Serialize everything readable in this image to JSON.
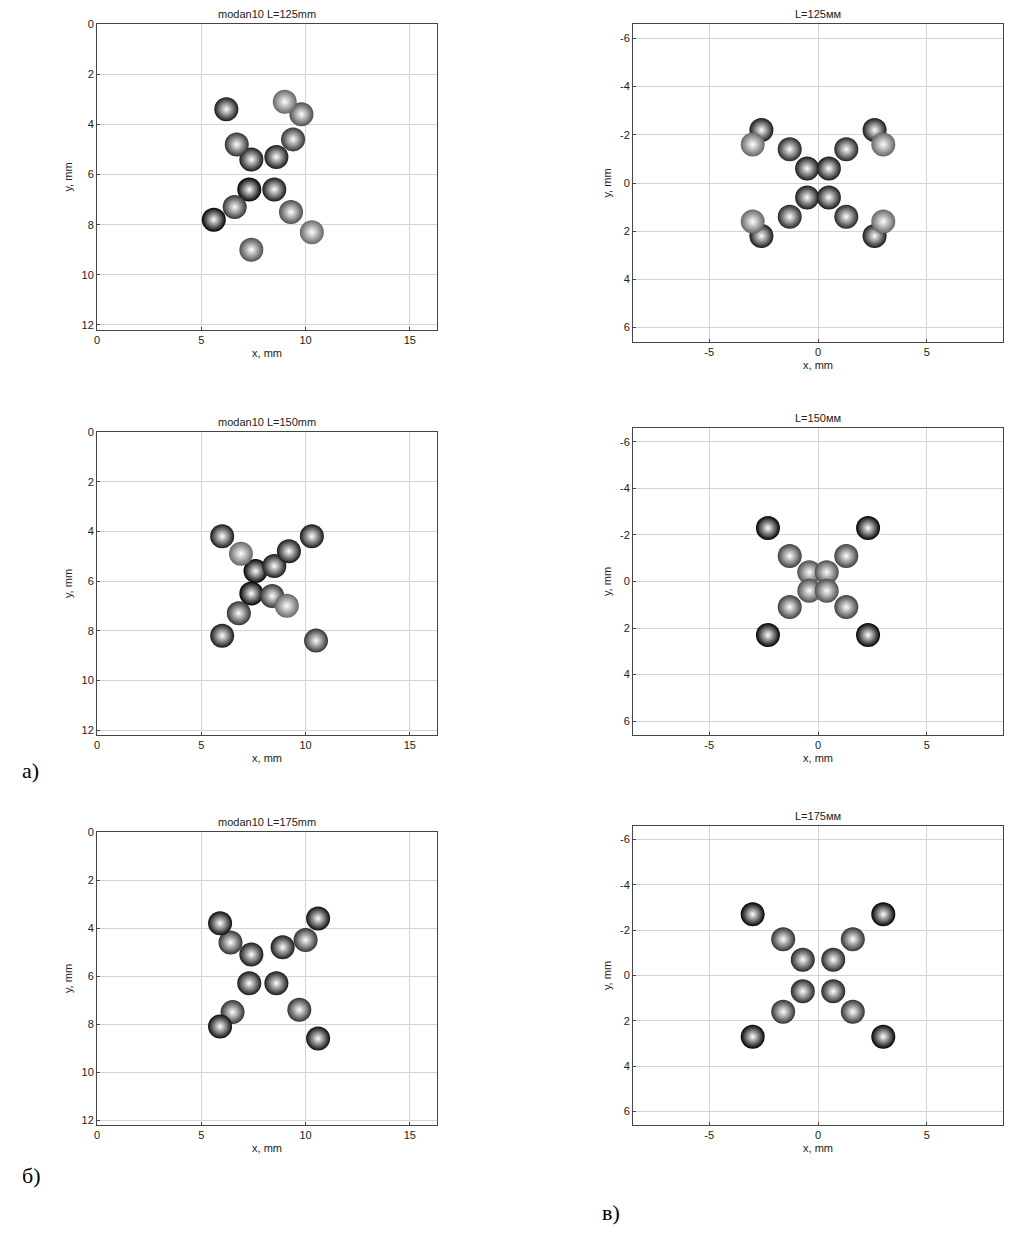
{
  "chart_data": [
    {
      "type": "scatter",
      "title": "modan10 L=125mm",
      "x_label": "x, mm",
      "y_label": "y, mm",
      "xlim": [
        0,
        16.3
      ],
      "ylim": [
        12.2,
        0
      ],
      "xticks": [
        0,
        5,
        10,
        15
      ],
      "yticks": [
        0,
        2,
        4,
        6,
        8,
        10,
        12
      ],
      "grid": true,
      "marker": "circle",
      "zlim": [
        0,
        1
      ],
      "x": [
        7.4,
        8.6,
        7.3,
        8.5,
        6.7,
        9.4,
        6.6,
        9.3,
        6.2,
        9.8,
        5.6,
        10.3,
        7.4,
        9.0
      ],
      "y": [
        5.4,
        5.3,
        6.6,
        6.6,
        4.8,
        4.6,
        7.3,
        7.5,
        3.4,
        3.6,
        7.8,
        8.3,
        9.0,
        3.1
      ],
      "values": [
        0.9,
        0.9,
        1,
        0.9,
        0.8,
        0.8,
        0.8,
        0.7,
        0.9,
        0.7,
        1,
        0.6,
        0.7,
        0.6
      ]
    },
    {
      "type": "scatter",
      "title": "L=125мм",
      "x_label": "x, mm",
      "y_label": "y, mm",
      "xlim": [
        -8.5,
        8.5
      ],
      "ylim": [
        6.6,
        -6.6
      ],
      "xticks": [
        -5,
        0,
        5
      ],
      "yticks": [
        -6,
        -4,
        -2,
        0,
        2,
        4,
        6
      ],
      "grid": true,
      "marker": "circle",
      "zlim": [
        0,
        1
      ],
      "x": [
        -0.5,
        0.5,
        -0.5,
        0.5,
        -1.3,
        1.3,
        -1.3,
        1.3,
        -2.6,
        2.6,
        -2.6,
        2.6,
        -3.0,
        3.0,
        -3.0,
        3.0
      ],
      "y": [
        -0.6,
        -0.6,
        0.6,
        0.6,
        -1.4,
        -1.4,
        1.4,
        1.4,
        -2.2,
        -2.2,
        2.2,
        2.2,
        -1.6,
        -1.6,
        1.6,
        1.6
      ],
      "values": [
        0.9,
        0.9,
        0.9,
        0.9,
        0.85,
        0.85,
        0.85,
        0.85,
        0.9,
        0.9,
        0.9,
        0.9,
        0.6,
        0.6,
        0.6,
        0.6
      ]
    },
    {
      "type": "scatter",
      "title": "modan10 L=150mm",
      "x_label": "x, mm",
      "y_label": "y, mm",
      "xlim": [
        0,
        16.3
      ],
      "ylim": [
        12.2,
        0
      ],
      "xticks": [
        0,
        5,
        10,
        15
      ],
      "yticks": [
        0,
        2,
        4,
        6,
        8,
        10,
        12
      ],
      "grid": true,
      "marker": "circle",
      "zlim": [
        0,
        1
      ],
      "x": [
        7.6,
        8.5,
        7.4,
        8.4,
        9.2,
        6.8,
        6.9,
        9.1,
        6.0,
        10.3,
        6.0,
        10.5
      ],
      "y": [
        5.6,
        5.4,
        6.5,
        6.6,
        4.8,
        7.3,
        4.9,
        7.0,
        4.2,
        4.2,
        8.2,
        8.4
      ],
      "values": [
        1,
        0.9,
        1,
        0.8,
        0.9,
        0.8,
        0.6,
        0.6,
        0.9,
        0.9,
        0.9,
        0.8
      ]
    },
    {
      "type": "scatter",
      "title": "L=150мм",
      "x_label": "x, mm",
      "y_label": "y, mm",
      "xlim": [
        -8.5,
        8.5
      ],
      "ylim": [
        6.6,
        -6.6
      ],
      "xticks": [
        -5,
        0,
        5
      ],
      "yticks": [
        -6,
        -4,
        -2,
        0,
        2,
        4,
        6
      ],
      "grid": true,
      "marker": "circle",
      "zlim": [
        0,
        1
      ],
      "x": [
        -0.4,
        0.4,
        -0.4,
        0.4,
        -1.3,
        1.3,
        -1.3,
        1.3,
        -2.3,
        2.3,
        -2.3,
        2.3
      ],
      "y": [
        -0.4,
        -0.4,
        0.4,
        0.4,
        -1.1,
        -1.1,
        1.1,
        1.1,
        -2.3,
        -2.3,
        2.3,
        2.3
      ],
      "values": [
        0.7,
        0.7,
        0.7,
        0.7,
        0.75,
        0.75,
        0.75,
        0.75,
        1,
        1,
        1,
        1
      ]
    },
    {
      "type": "scatter",
      "title": "modan10 L=175mm",
      "x_label": "x, mm",
      "y_label": "y, mm",
      "xlim": [
        0,
        16.3
      ],
      "ylim": [
        12.2,
        0
      ],
      "xticks": [
        0,
        5,
        10,
        15
      ],
      "yticks": [
        0,
        2,
        4,
        6,
        8,
        10,
        12
      ],
      "grid": true,
      "marker": "circle",
      "zlim": [
        0,
        1
      ],
      "x": [
        7.4,
        8.9,
        7.3,
        8.6,
        6.4,
        10.0,
        6.5,
        9.7,
        5.9,
        10.6,
        5.9,
        10.6
      ],
      "y": [
        5.1,
        4.8,
        6.3,
        6.3,
        4.6,
        4.5,
        7.5,
        7.4,
        3.8,
        3.6,
        8.1,
        8.6
      ],
      "values": [
        0.9,
        0.9,
        0.9,
        0.9,
        0.8,
        0.8,
        0.8,
        0.8,
        0.95,
        0.95,
        0.95,
        0.95
      ]
    },
    {
      "type": "scatter",
      "title": "L=175мм",
      "x_label": "x, mm",
      "y_label": "y, mm",
      "xlim": [
        -8.5,
        8.5
      ],
      "ylim": [
        6.6,
        -6.6
      ],
      "xticks": [
        -5,
        0,
        5
      ],
      "yticks": [
        -6,
        -4,
        -2,
        0,
        2,
        4,
        6
      ],
      "grid": true,
      "marker": "circle",
      "zlim": [
        0,
        1
      ],
      "x": [
        -0.7,
        0.7,
        -0.7,
        0.7,
        -1.6,
        1.6,
        -1.6,
        1.6,
        -3.0,
        3.0,
        -3.0,
        3.0
      ],
      "y": [
        -0.7,
        -0.7,
        0.7,
        0.7,
        -1.6,
        -1.6,
        1.6,
        1.6,
        -2.7,
        -2.7,
        2.7,
        2.7
      ],
      "values": [
        0.85,
        0.85,
        0.85,
        0.85,
        0.8,
        0.8,
        0.8,
        0.8,
        1,
        1,
        1,
        1
      ]
    }
  ],
  "panel_labels": [
    "а)",
    "б)",
    "в)"
  ]
}
